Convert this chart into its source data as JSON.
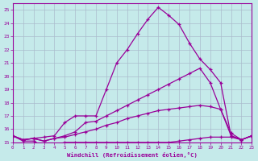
{
  "xlabel": "Windchill (Refroidissement éolien,°C)",
  "xlim": [
    0,
    23
  ],
  "ylim": [
    15,
    25.5
  ],
  "background_color": "#c5eaea",
  "grid_color": "#aabbcc",
  "line_color": "#990099",
  "line1_x": [
    0,
    1,
    2,
    3,
    4,
    5,
    6,
    7,
    8,
    9,
    10,
    11,
    12,
    13,
    14,
    15,
    16,
    17,
    18,
    19,
    20,
    21,
    22,
    23
  ],
  "line1_y": [
    15.5,
    15.2,
    15.3,
    15.4,
    15.5,
    16.5,
    17.0,
    17.0,
    17.0,
    19.0,
    21.0,
    22.0,
    23.2,
    24.3,
    25.2,
    24.6,
    23.9,
    22.5,
    21.3,
    20.5,
    19.5,
    15.5,
    15.2,
    15.5
  ],
  "line2_x": [
    0,
    1,
    2,
    3,
    4,
    5,
    6,
    7,
    8,
    9,
    10,
    11,
    12,
    13,
    14,
    15,
    16,
    17,
    18,
    19,
    20,
    21,
    22,
    23
  ],
  "line2_y": [
    15.5,
    15.2,
    15.3,
    15.1,
    15.3,
    15.5,
    15.8,
    16.5,
    16.6,
    17.0,
    17.4,
    17.8,
    18.2,
    18.6,
    19.0,
    19.4,
    19.8,
    20.2,
    20.6,
    19.5,
    17.5,
    15.5,
    15.2,
    15.5
  ],
  "line3_x": [
    0,
    1,
    2,
    3,
    4,
    5,
    6,
    7,
    8,
    9,
    10,
    11,
    12,
    13,
    14,
    15,
    16,
    17,
    18,
    19,
    20,
    21,
    22,
    23
  ],
  "line3_y": [
    15.5,
    15.2,
    15.3,
    15.1,
    15.3,
    15.4,
    15.6,
    15.8,
    16.0,
    16.3,
    16.5,
    16.8,
    17.0,
    17.2,
    17.4,
    17.5,
    17.6,
    17.7,
    17.8,
    17.7,
    17.5,
    15.7,
    15.2,
    15.5
  ],
  "line4_x": [
    0,
    1,
    2,
    3,
    4,
    5,
    6,
    7,
    8,
    9,
    10,
    11,
    12,
    13,
    14,
    15,
    16,
    17,
    18,
    19,
    20,
    21,
    22,
    23
  ],
  "line4_y": [
    15.5,
    15.1,
    15.1,
    14.7,
    14.8,
    15.0,
    15.0,
    15.0,
    15.0,
    15.0,
    15.0,
    15.0,
    15.0,
    15.0,
    15.0,
    15.0,
    15.1,
    15.2,
    15.3,
    15.4,
    15.4,
    15.4,
    15.2,
    15.5
  ]
}
